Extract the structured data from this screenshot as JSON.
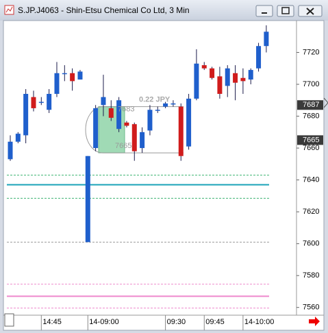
{
  "window_title": "S.JP.J4063 - Shin-Etsu Chemical Co Ltd, 3 Min",
  "chart_data": {
    "type": "candlestick",
    "categories": [
      null,
      null,
      null,
      null,
      "14:45",
      null,
      null,
      null,
      null,
      null,
      "14-09:00",
      null,
      null,
      null,
      null,
      null,
      null,
      null,
      null,
      null,
      "09:30",
      null,
      null,
      null,
      null,
      "09:45",
      null,
      null,
      null,
      null,
      "14-10:00",
      null,
      null,
      null
    ],
    "series": [
      {
        "open": [
          7653,
          7664,
          7668,
          7692,
          7689,
          7684,
          7694,
          7707,
          7707,
          7703,
          7601,
          7660,
          7687,
          7685,
          7672,
          7676,
          7675,
          7660,
          7671,
          7684,
          7686,
          7688,
          7686,
          7661,
          7691,
          7712,
          7710,
          7705,
          7699,
          7707,
          7704,
          7703,
          7710,
          7724
        ],
        "high": [
          7668,
          7670,
          7697,
          7696,
          7692,
          7697,
          7714,
          7712,
          7710,
          7709,
          7655,
          7687,
          7706,
          7690,
          7692,
          7677,
          7676,
          7673,
          7687,
          7686,
          7689,
          7690,
          7688,
          7694,
          7722,
          7714,
          7711,
          7711,
          7712,
          7712,
          7710,
          7710,
          7726,
          7737
        ],
        "low": [
          7652,
          7663,
          7663,
          7683,
          7687,
          7682,
          7692,
          7702,
          7696,
          7703,
          7601,
          7658,
          7680,
          7677,
          7670,
          7673,
          7652,
          7657,
          7668,
          7682,
          7685,
          7686,
          7652,
          7659,
          7690,
          7709,
          7703,
          7691,
          7692,
          7690,
          7694,
          7700,
          7708,
          7720
        ],
        "close": [
          7664,
          7669,
          7694,
          7685,
          7689,
          7694,
          7707,
          7707,
          7702,
          7708,
          7655,
          7685,
          7692,
          7679,
          7690,
          7674,
          7658,
          7670,
          7684,
          7684,
          7688,
          7688,
          7655,
          7691,
          7713,
          7710,
          7704,
          7694,
          7710,
          7701,
          7702,
          7709,
          7724,
          7733
        ]
      }
    ],
    "up_color": "#1f5fcc",
    "down_color": "#d01c1c",
    "ylim": [
      7556,
      7740
    ],
    "yticks": [
      7560,
      7580,
      7600,
      7620,
      7640,
      7660,
      7680,
      7700,
      7720
    ],
    "levels": [
      {
        "value": 7643,
        "color": "#3cb371",
        "dash": true
      },
      {
        "value": 7637,
        "color": "#1aa3b8",
        "dash": false
      },
      {
        "value": 7628.5,
        "color": "#3cb371",
        "dash": true
      },
      {
        "value": 7601,
        "color": "#999999",
        "dash": true
      },
      {
        "value": 7574.6,
        "color": "#ee88cc",
        "dash": true
      },
      {
        "value": 7567,
        "color": "#ee88cc",
        "dash": false
      },
      {
        "value": 7559.6,
        "color": "#ee88cc",
        "dash": true
      }
    ],
    "price_markers": [
      7687,
      7665
    ],
    "highlight": [
      7686,
      7657
    ],
    "annotations": [
      "0.22 JPY",
      "7683",
      "7665"
    ]
  }
}
